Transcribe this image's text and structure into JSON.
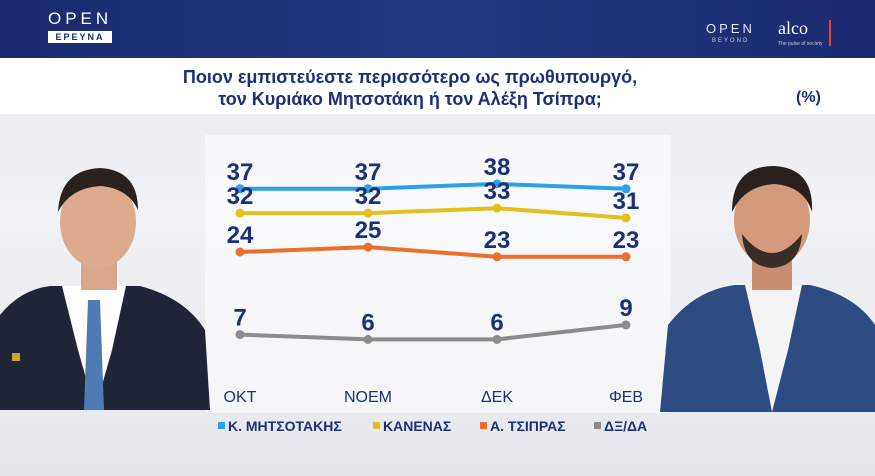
{
  "header": {
    "brand_open": "OPEN",
    "brand_ereuna": "ΕΡΕΥΝΑ",
    "partner_open": "OPEN",
    "partner_beyond": "BEYOND",
    "partner_alco": "alco",
    "partner_alco_tagline": "The pulse of society"
  },
  "chart_data": {
    "type": "line",
    "title": "Ποιον εμπιστεύεστε περισσότερο ως πρωθυπουργό, τον Κυριάκο Μητσοτάκη ή τον Αλέξη Τσίπρα;",
    "title_line1": "Ποιον εμπιστεύεστε περισσότερο ως πρωθυπουργό,",
    "title_line2": "τον Κυριάκο Μητσοτάκη ή τον Αλέξη Τσίπρα;",
    "unit": "(%)",
    "categories": [
      "ΟΚΤ",
      "ΝΟΕΜ",
      "ΔΕΚ",
      "ΦΕΒ"
    ],
    "series": [
      {
        "name": "Κ. ΜΗΤΣΟΤΑΚΗΣ",
        "color": "#29a3e6",
        "values": [
          37,
          37,
          38,
          37
        ]
      },
      {
        "name": "ΚΑΝΕΝΑΣ",
        "color": "#e3c01c",
        "values": [
          32,
          32,
          33,
          31
        ]
      },
      {
        "name": "Α. ΤΣΙΠΡΑΣ",
        "color": "#ee6e2d",
        "values": [
          24,
          25,
          23,
          23
        ]
      },
      {
        "name": "ΔΞ/ΔΑ",
        "color": "#8c8c8c",
        "values": [
          7,
          6,
          6,
          9
        ]
      }
    ],
    "legend_position": "bottom",
    "grid": false
  }
}
